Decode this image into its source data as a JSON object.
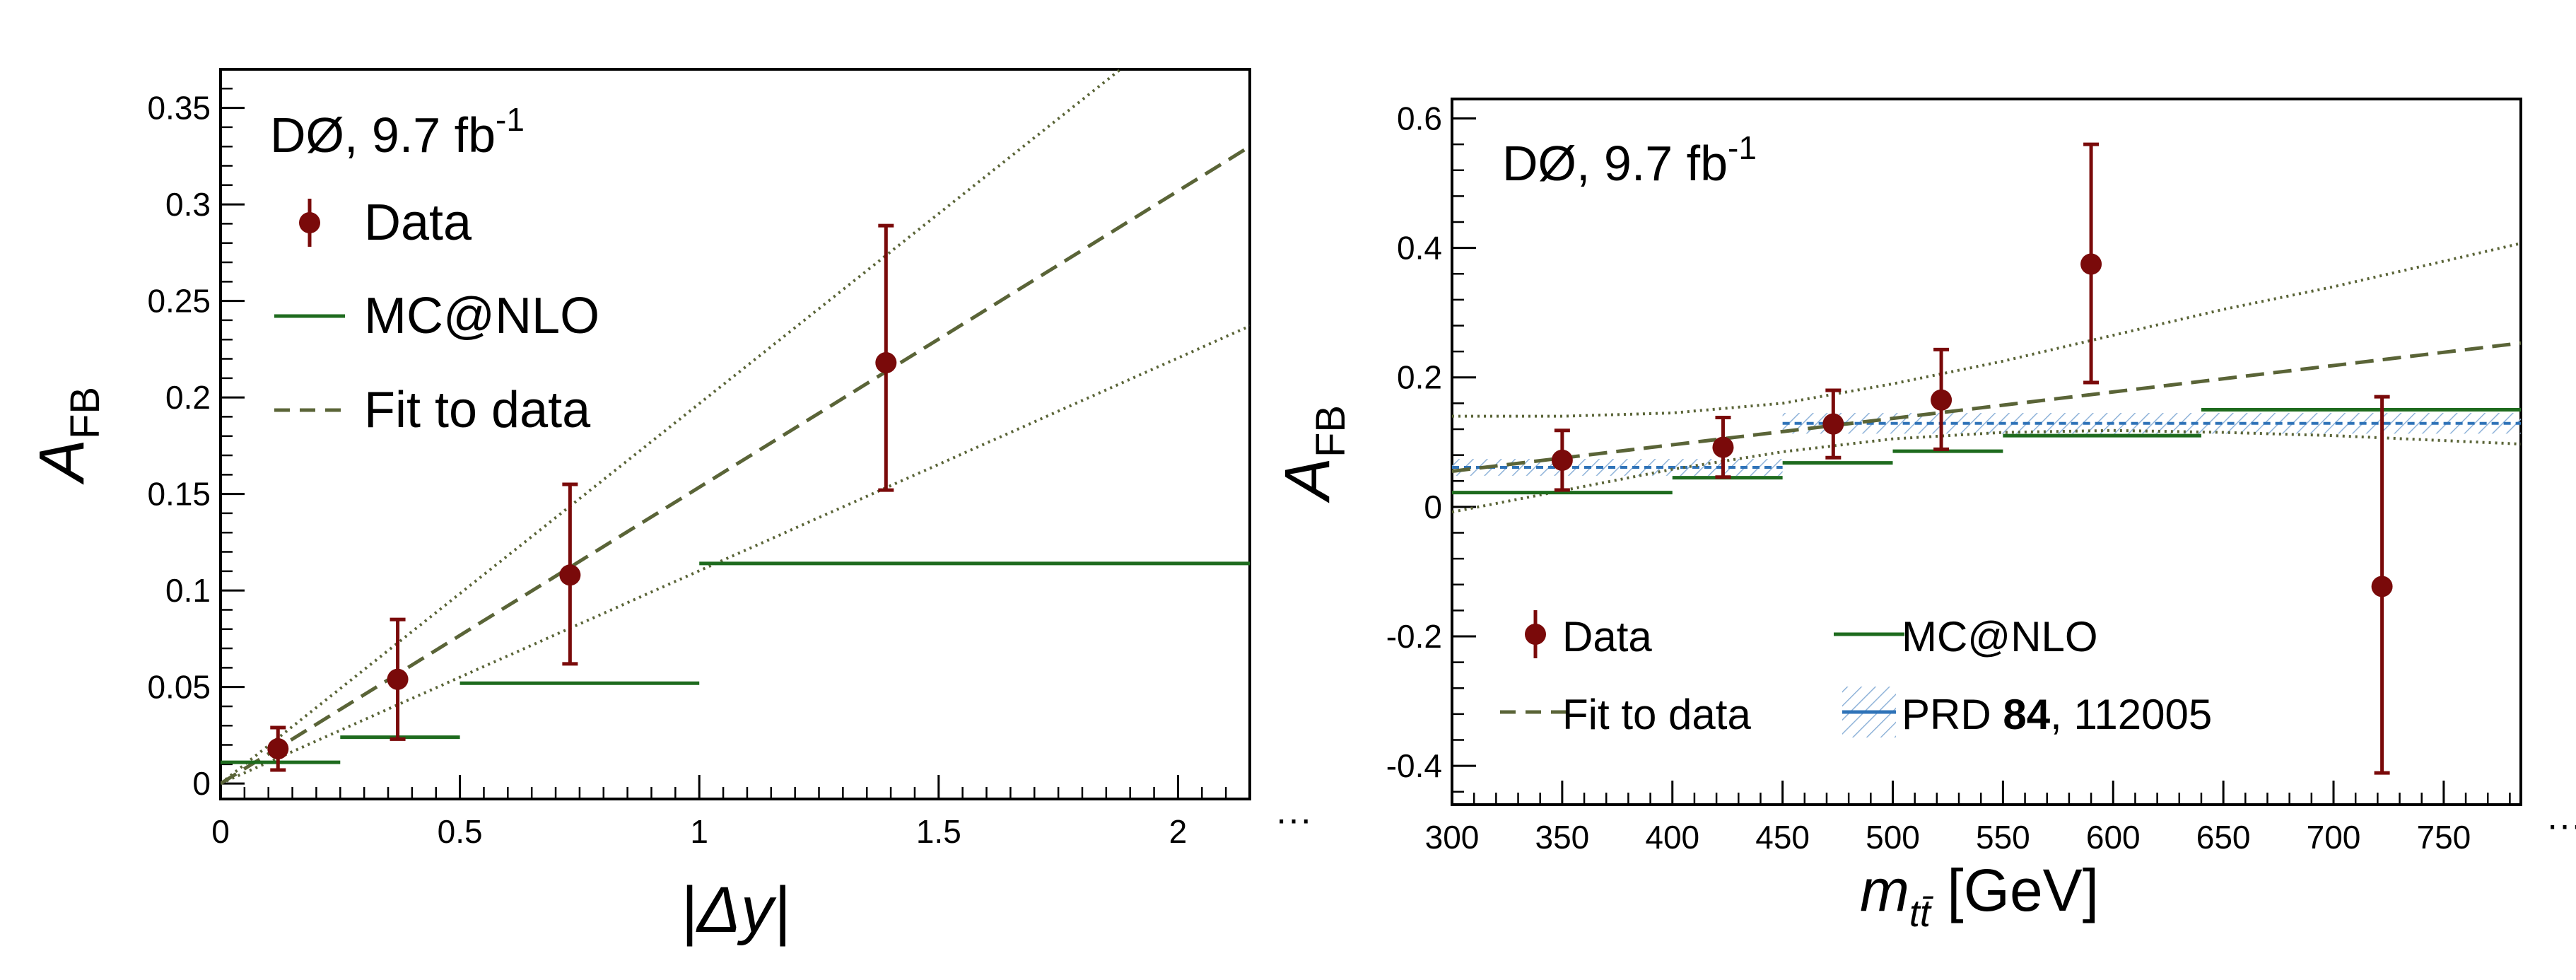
{
  "colors": {
    "data": "#7a0a0a",
    "mc": "#1e6b1e",
    "fit": "#5a6437",
    "prd": "#2f73b8",
    "prd_hatch": "#8fb3d9"
  },
  "chart_data": [
    {
      "type": "scatter",
      "title": "",
      "annotation": {
        "base": "DØ, 9.7 fb",
        "sup": "-1"
      },
      "xlabel": "|Δy|",
      "ylabel": {
        "base": "A",
        "sub": "FB"
      },
      "xlim": [
        0,
        2.15
      ],
      "ylim": [
        -0.008,
        0.37
      ],
      "xticks": [
        0,
        0.5,
        1,
        1.5,
        2
      ],
      "xtick_labels": [
        "0",
        "0.5",
        "1",
        "1.5",
        "2"
      ],
      "yticks": [
        0,
        0.05,
        0.1,
        0.15,
        0.2,
        0.25,
        0.3,
        0.35
      ],
      "ytick_labels": [
        "0",
        "0.05",
        "0.1",
        "0.15",
        "0.2",
        "0.25",
        "0.3",
        "0.35"
      ],
      "axis_break_label": "···",
      "legend": {
        "position": "top-left",
        "entries": [
          "Data",
          "MC@NLO",
          "Fit to data"
        ]
      },
      "series": [
        {
          "name": "Data",
          "kind": "points",
          "x": [
            0.12,
            0.37,
            0.73,
            1.39
          ],
          "y": [
            0.018,
            0.054,
            0.108,
            0.218
          ],
          "yerr_lo": [
            0.011,
            0.031,
            0.046,
            0.066
          ],
          "yerr_hi": [
            0.011,
            0.031,
            0.047,
            0.071
          ]
        },
        {
          "name": "MC@NLO",
          "kind": "steps",
          "bins": [
            [
              0,
              0.25
            ],
            [
              0.25,
              0.5
            ],
            [
              0.5,
              1.0
            ],
            [
              1.0,
              2.15
            ]
          ],
          "y": [
            0.011,
            0.024,
            0.052,
            0.114
          ]
        },
        {
          "name": "Fit to data",
          "kind": "dashed-line",
          "x": [
            0,
            2.15
          ],
          "y": [
            0,
            0.33
          ]
        },
        {
          "name": "Fit band upper",
          "kind": "dotted-line",
          "x": [
            0,
            1.88
          ],
          "y": [
            0,
            0.37
          ]
        },
        {
          "name": "Fit band lower",
          "kind": "dotted-line",
          "x": [
            0,
            2.15
          ],
          "y": [
            0,
            0.237
          ]
        }
      ]
    },
    {
      "type": "scatter",
      "title": "",
      "annotation": {
        "base": "DØ, 9.7 fb",
        "sup": "-1"
      },
      "xlabel": {
        "base": "m",
        "sub": "tt̄",
        "unit": " [GeV]"
      },
      "ylabel": {
        "base": "A",
        "sub": "FB"
      },
      "xlim": [
        300,
        785
      ],
      "ylim": [
        -0.46,
        0.63
      ],
      "xticks": [
        300,
        350,
        400,
        450,
        500,
        550,
        600,
        650,
        700,
        750
      ],
      "xtick_labels": [
        "300",
        "350",
        "400",
        "450",
        "500",
        "550",
        "600",
        "650",
        "700",
        "750"
      ],
      "yticks": [
        -0.4,
        -0.2,
        0,
        0.2,
        0.4,
        0.6
      ],
      "ytick_labels": [
        "-0.4",
        "-0.2",
        "0",
        "0.2",
        "0.4",
        "0.6"
      ],
      "axis_break_label": "···",
      "legend": {
        "position": "bottom-left",
        "entries": [
          "Data",
          "MC@NLO",
          "Fit to data",
          {
            "pre": "PRD ",
            "bold": "84",
            "post": ", 112005"
          }
        ]
      },
      "series": [
        {
          "name": "Data",
          "kind": "points",
          "x": [
            350,
            423,
            473,
            522,
            590,
            722
          ],
          "y": [
            0.072,
            0.092,
            0.128,
            0.165,
            0.375,
            -0.123
          ],
          "yerr_lo": [
            0.046,
            0.046,
            0.052,
            0.076,
            0.183,
            0.288
          ],
          "yerr_hi": [
            0.046,
            0.046,
            0.052,
            0.078,
            0.185,
            0.293
          ]
        },
        {
          "name": "MC@NLO",
          "kind": "steps",
          "bins": [
            [
              300,
              400
            ],
            [
              400,
              450
            ],
            [
              450,
              500
            ],
            [
              500,
              550
            ],
            [
              550,
              640
            ],
            [
              640,
              785
            ]
          ],
          "y": [
            0.022,
            0.045,
            0.068,
            0.086,
            0.11,
            0.15
          ]
        },
        {
          "name": "Fit to data",
          "kind": "dashed-line",
          "x": [
            300,
            785
          ],
          "y": [
            0.055,
            0.253
          ]
        },
        {
          "name": "Fit band upper",
          "kind": "dotted-curve",
          "x": [
            300,
            350,
            400,
            450,
            500,
            550,
            600,
            650,
            700,
            785
          ],
          "y": [
            0.14,
            0.14,
            0.145,
            0.16,
            0.19,
            0.225,
            0.265,
            0.305,
            0.34,
            0.407
          ]
        },
        {
          "name": "Fit band lower",
          "kind": "dotted-curve",
          "x": [
            300,
            350,
            400,
            450,
            500,
            550,
            600,
            650,
            700,
            785
          ],
          "y": [
            -0.008,
            0.025,
            0.058,
            0.085,
            0.105,
            0.115,
            0.118,
            0.115,
            0.11,
            0.097
          ]
        },
        {
          "name": "PRD 84, 112005",
          "kind": "hatched-steps",
          "bins": [
            [
              300,
              450
            ],
            [
              450,
              785
            ]
          ],
          "y": [
            0.061,
            0.129
          ],
          "band_halfwidth": [
            0.013,
            0.016
          ]
        }
      ]
    }
  ]
}
